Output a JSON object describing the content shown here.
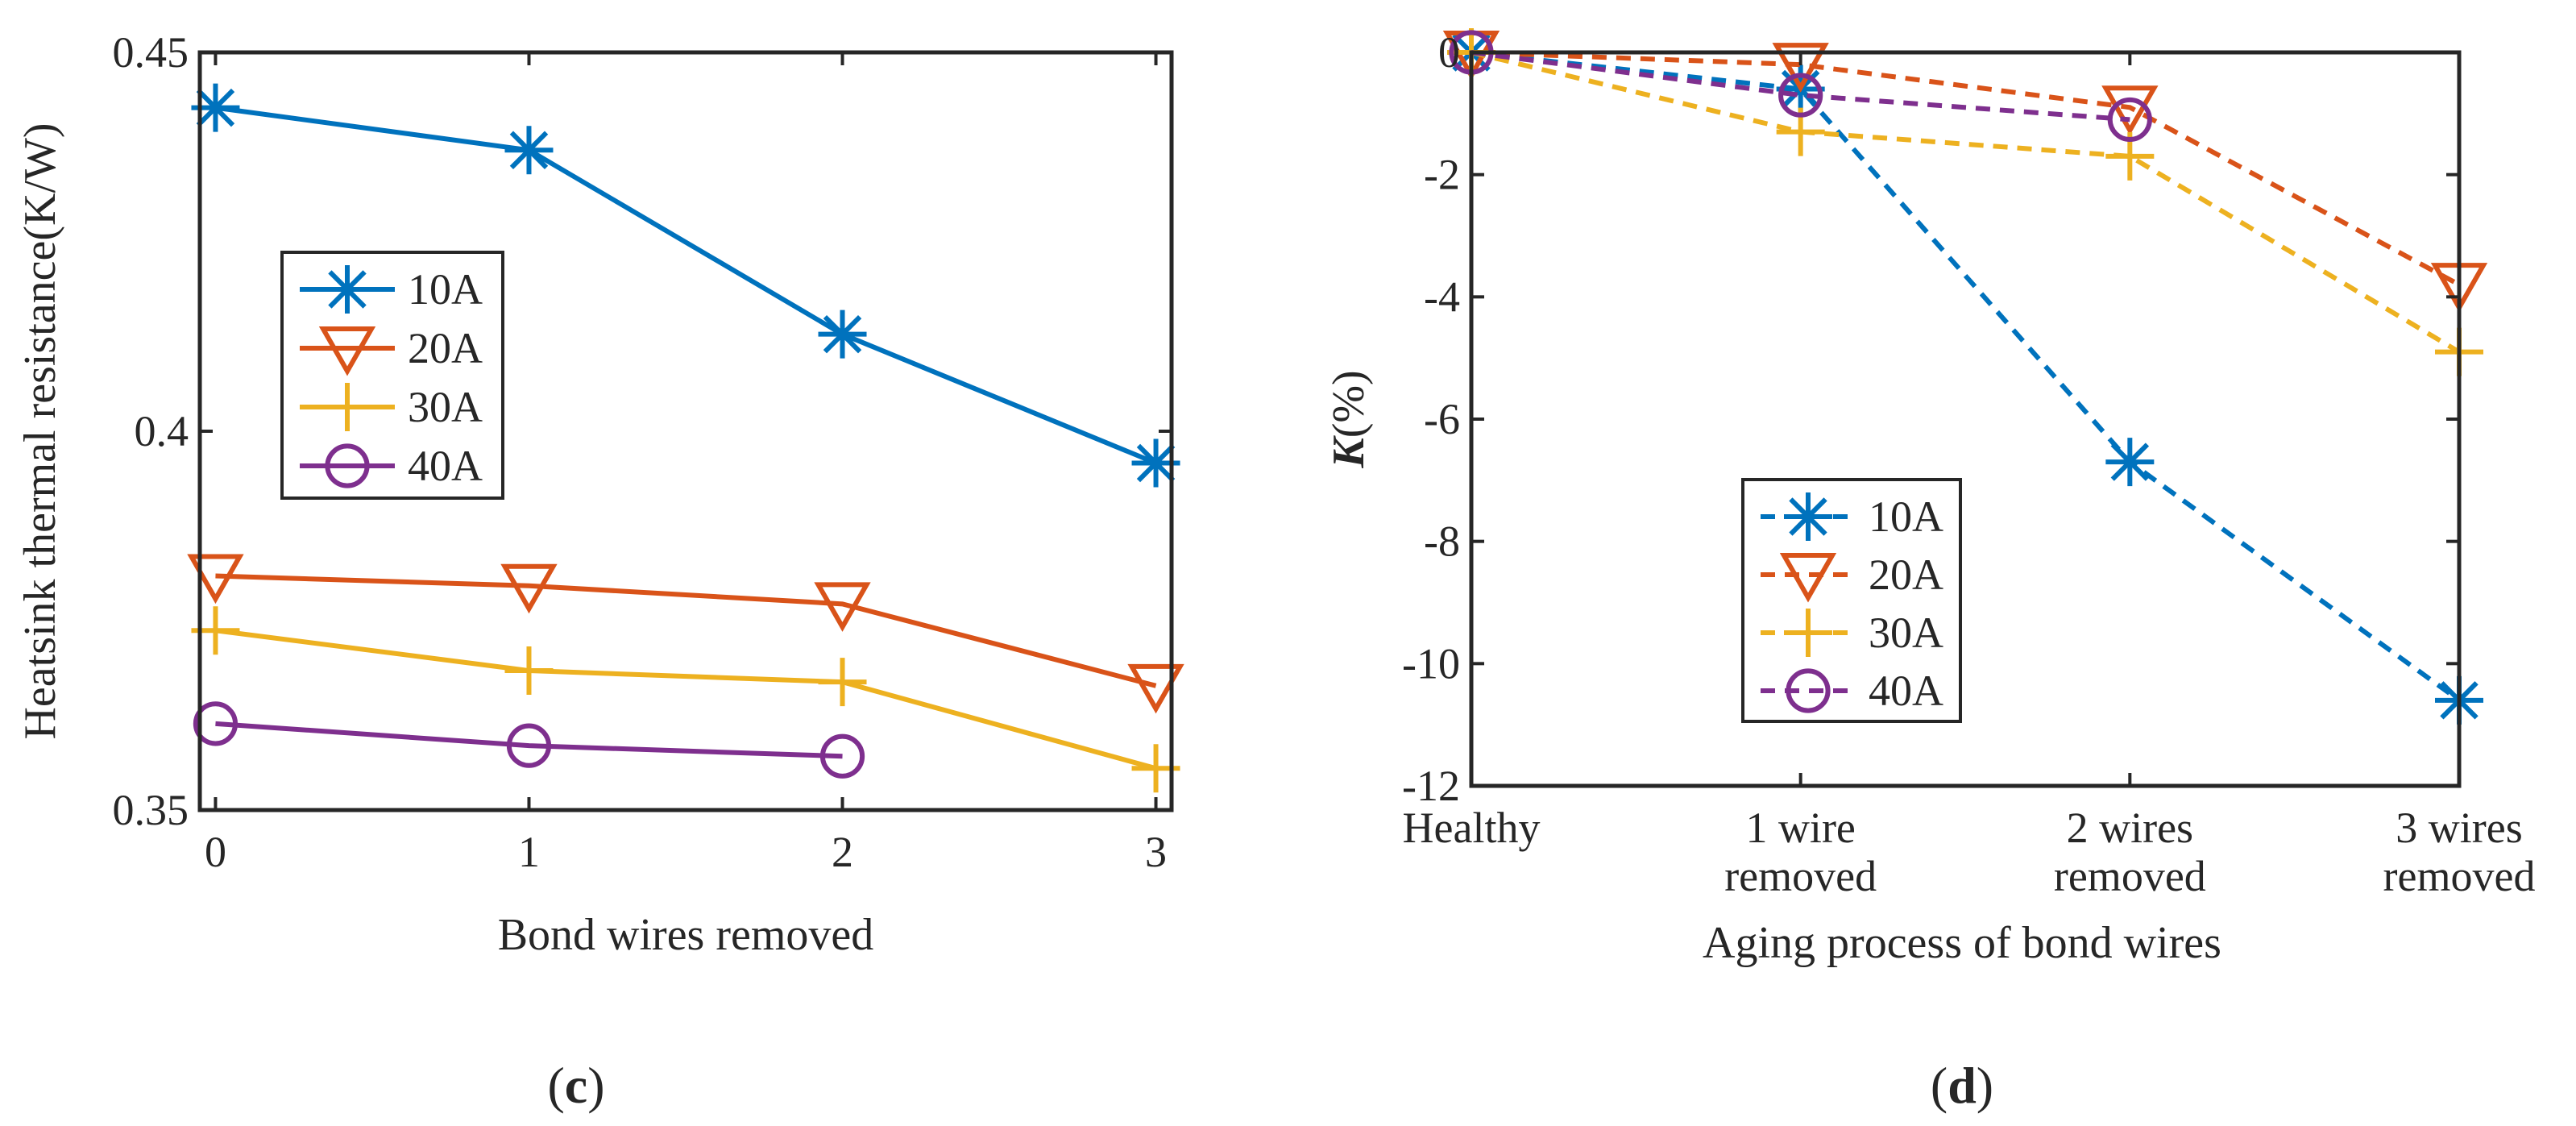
{
  "figure": {
    "panels": [
      {
        "caption_letter": "c",
        "caption_open": "(",
        "caption_close": ")"
      },
      {
        "caption_letter": "d",
        "caption_open": "(",
        "caption_close": ")"
      }
    ]
  },
  "colors": {
    "10A": "#0072BD",
    "20A": "#D95319",
    "30A": "#EDB120",
    "40A": "#7E2F8E",
    "axis": "#262626"
  },
  "chart_data": [
    {
      "type": "line",
      "panel": "c",
      "title": "",
      "xlabel": "Bond wires removed",
      "ylabel": "Heatsink thermal resistance(K/W)",
      "x": [
        0,
        1,
        2,
        3
      ],
      "xticks": [
        "0",
        "1",
        "2",
        "3"
      ],
      "xlim": [
        -0.05,
        3.05
      ],
      "ylim": [
        0.35,
        0.45
      ],
      "yticks": [
        "0.35",
        "0.4",
        "0.45"
      ],
      "ytick_values": [
        0.35,
        0.4,
        0.45
      ],
      "line_style": "solid",
      "legend_position": "center-left",
      "series": [
        {
          "name": "10A",
          "marker": "asterisk",
          "color": "#0072BD",
          "values": [
            0.4427,
            0.4371,
            0.4128,
            0.3958
          ]
        },
        {
          "name": "20A",
          "marker": "triangle-down",
          "color": "#D95319",
          "values": [
            0.3809,
            0.3796,
            0.3772,
            0.3664
          ]
        },
        {
          "name": "30A",
          "marker": "plus",
          "color": "#EDB120",
          "values": [
            0.3737,
            0.3684,
            0.3669,
            0.3555
          ]
        },
        {
          "name": "40A",
          "marker": "circle",
          "color": "#7E2F8E",
          "values": [
            0.3614,
            0.3585,
            0.3571,
            null
          ]
        }
      ]
    },
    {
      "type": "line",
      "panel": "d",
      "title": "",
      "xlabel": "Aging process of bond wires",
      "ylabel_main": "K",
      "ylabel_suffix": "(%)",
      "categories": [
        [
          "Healthy"
        ],
        [
          "1 wire",
          "removed"
        ],
        [
          "2 wires",
          "removed"
        ],
        [
          "3 wires",
          "removed"
        ]
      ],
      "xlim": [
        0,
        3
      ],
      "ylim": [
        -12,
        0
      ],
      "yticks": [
        "0",
        "-2",
        "-4",
        "-6",
        "-8",
        "-10",
        "-12"
      ],
      "ytick_values": [
        0,
        -2,
        -4,
        -6,
        -8,
        -10,
        -12
      ],
      "line_style": "dashed",
      "legend_position": "lower-left",
      "series": [
        {
          "name": "10A",
          "marker": "asterisk",
          "color": "#0072BD",
          "values": [
            0,
            -0.6,
            -6.7,
            -10.6
          ]
        },
        {
          "name": "20A",
          "marker": "triangle-down",
          "color": "#D95319",
          "values": [
            0,
            -0.2,
            -0.9,
            -3.8
          ]
        },
        {
          "name": "30A",
          "marker": "plus",
          "color": "#EDB120",
          "values": [
            0,
            -1.3,
            -1.7,
            -4.9
          ]
        },
        {
          "name": "40A",
          "marker": "circle",
          "color": "#7E2F8E",
          "values": [
            0,
            -0.7,
            -1.1,
            null
          ]
        }
      ]
    }
  ]
}
